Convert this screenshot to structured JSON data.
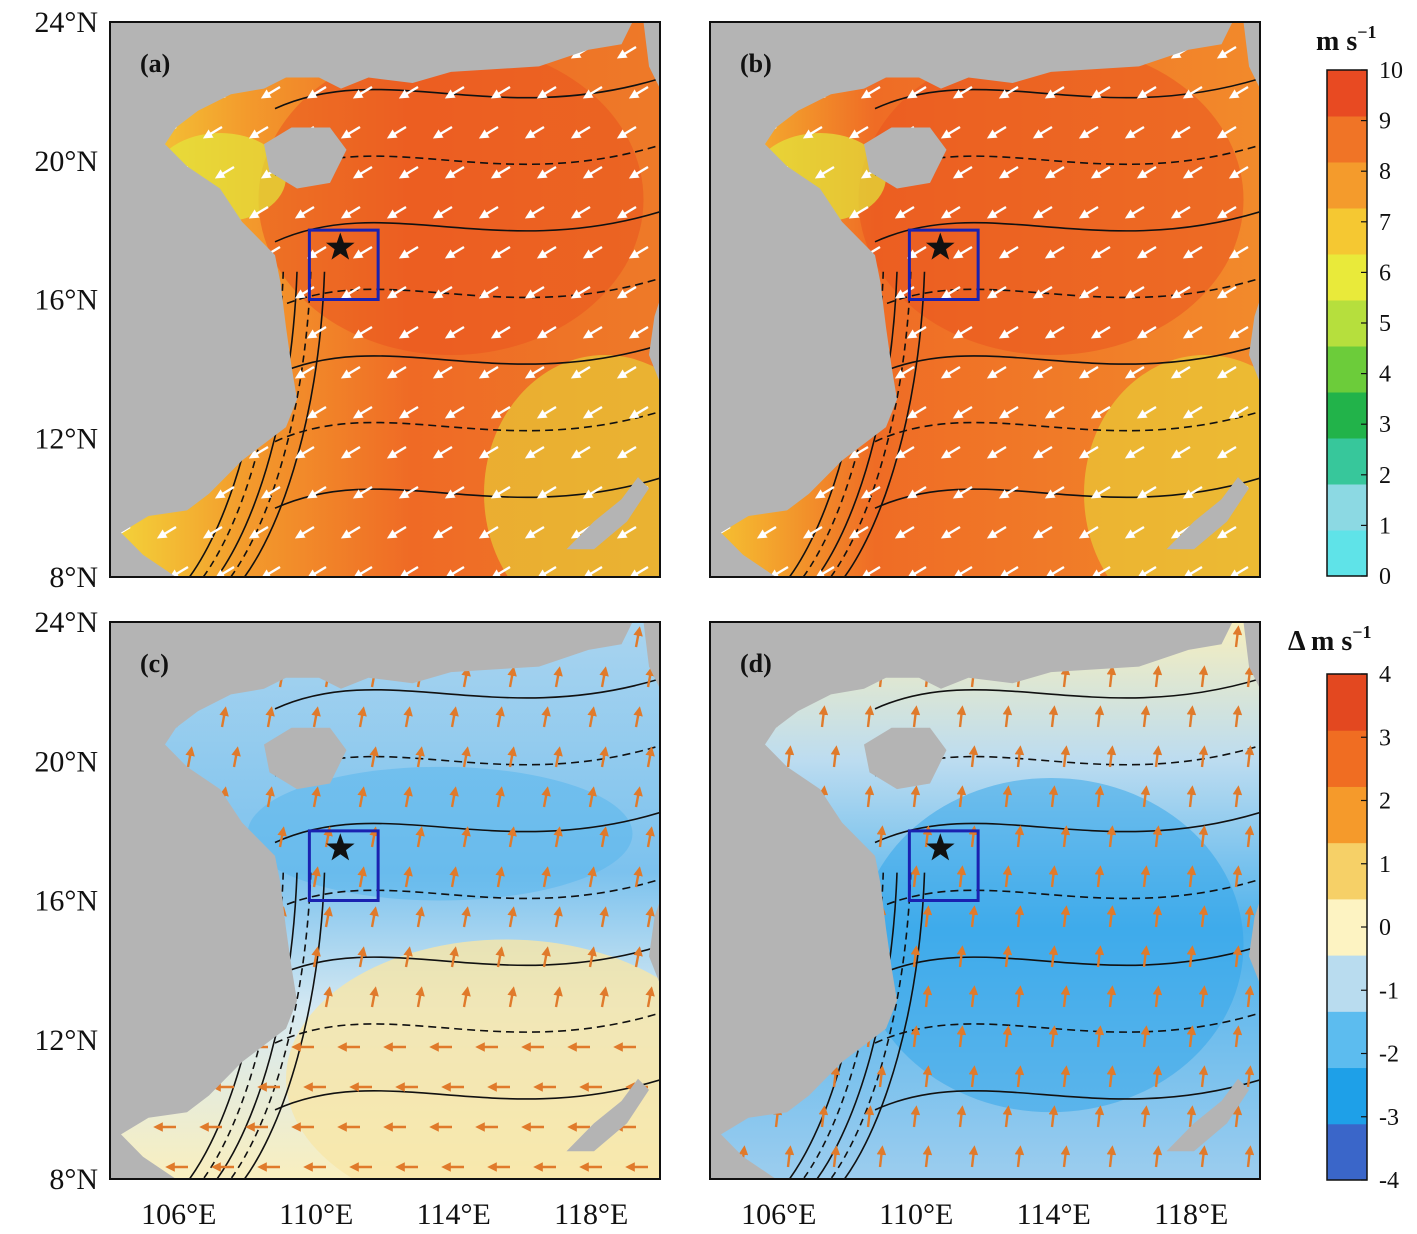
{
  "figure": {
    "panels": [
      {
        "id": "a",
        "label": "(a)",
        "field": "speed"
      },
      {
        "id": "b",
        "label": "(b)",
        "field": "speed"
      },
      {
        "id": "c",
        "label": "(c)",
        "field": "diff"
      },
      {
        "id": "d",
        "label": "(d)",
        "field": "diff"
      }
    ],
    "lat_ticks": [
      "24°N",
      "20°N",
      "16°N",
      "12°N",
      "8°N"
    ],
    "lon_ticks": [
      "106°E",
      "110°E",
      "114°E",
      "118°E"
    ],
    "lat_values": [
      24,
      20,
      16,
      12,
      8
    ],
    "lon_values": [
      106,
      110,
      114,
      118
    ],
    "extent": {
      "lon_min": 104,
      "lon_max": 120,
      "lat_min": 8,
      "lat_max": 24
    },
    "study_box": {
      "lon_min": 109.8,
      "lon_max": 111.8,
      "lat_min": 16,
      "lat_max": 18
    },
    "station_star": {
      "lon": 110.7,
      "lat": 17.5
    }
  },
  "colorbar_speed": {
    "unit": "m s",
    "unit_exp": "−1",
    "ticks": [
      "10",
      "9",
      "8",
      "7",
      "6",
      "5",
      "4",
      "3",
      "2",
      "1",
      "0"
    ],
    "range": [
      0,
      10
    ],
    "colors": [
      "#5fe3e8",
      "#8cd9e3",
      "#37c79b",
      "#22b34a",
      "#6ccc3a",
      "#b6df3d",
      "#e9ea3a",
      "#f5c832",
      "#f49b2c",
      "#f07426",
      "#e84a22"
    ]
  },
  "colorbar_diff": {
    "unit": "Δ m s",
    "unit_exp": "−1",
    "ticks": [
      "4",
      "3",
      "2",
      "1",
      "0",
      "-1",
      "-2",
      "-3",
      "-4"
    ],
    "range": [
      -4,
      4
    ],
    "colors": [
      "#3a66c9",
      "#1ea0e8",
      "#5cbcef",
      "#b9dcef",
      "#fdf3c2",
      "#f6d067",
      "#f59a2b",
      "#f06d22",
      "#e34820"
    ]
  },
  "colors": {
    "land": "#b4b4b4",
    "box": "#1a22b0",
    "speed_arrows": "#ffffff",
    "diff_arrows": "#e07a2b"
  }
}
